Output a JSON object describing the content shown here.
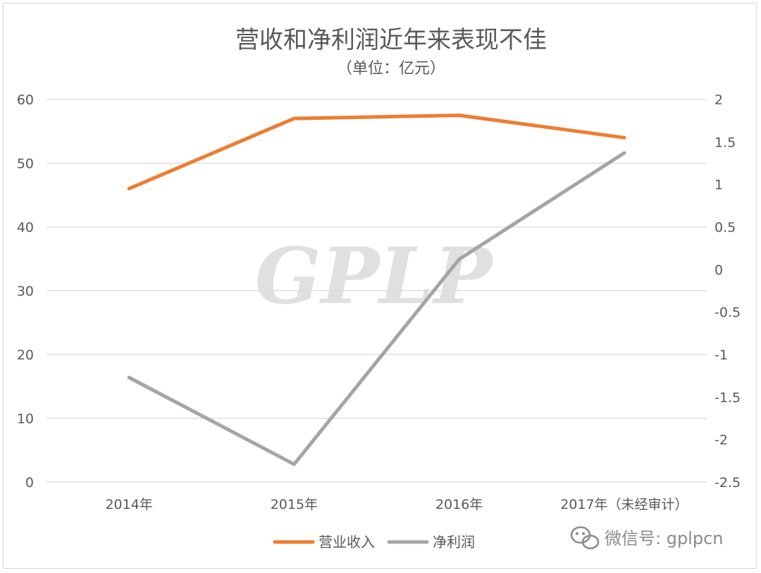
{
  "chart_data": {
    "type": "line",
    "title": "营收和净利润近年来表现不佳",
    "subtitle": "（单位：亿元）",
    "categories": [
      "2014年",
      "2015年",
      "2016年",
      "2017年（未经审计）"
    ],
    "y_left": {
      "min": 0,
      "max": 60,
      "step": 10,
      "ticks": [
        "0",
        "10",
        "20",
        "30",
        "40",
        "50",
        "60"
      ]
    },
    "y_right": {
      "min": -2.5,
      "max": 2,
      "step": 0.5,
      "ticks": [
        "-2.5",
        "-2",
        "-1.5",
        "-1",
        "-0.5",
        "0",
        "0.5",
        "1",
        "1.5",
        "2"
      ]
    },
    "series": [
      {
        "name": "营业收入",
        "axis": "left",
        "color": "#ed7d31",
        "values": [
          46,
          57,
          57.5,
          54
        ]
      },
      {
        "name": "净利润",
        "axis": "right",
        "color": "#a5a5a5",
        "values": [
          -1.27,
          -2.29,
          0.12,
          1.37
        ]
      }
    ],
    "grid": true,
    "legend_position": "bottom"
  },
  "watermark": {
    "text": "GPLP"
  },
  "wechat": {
    "label": "微信号: gplpcn",
    "icon": "wechat-icon"
  }
}
